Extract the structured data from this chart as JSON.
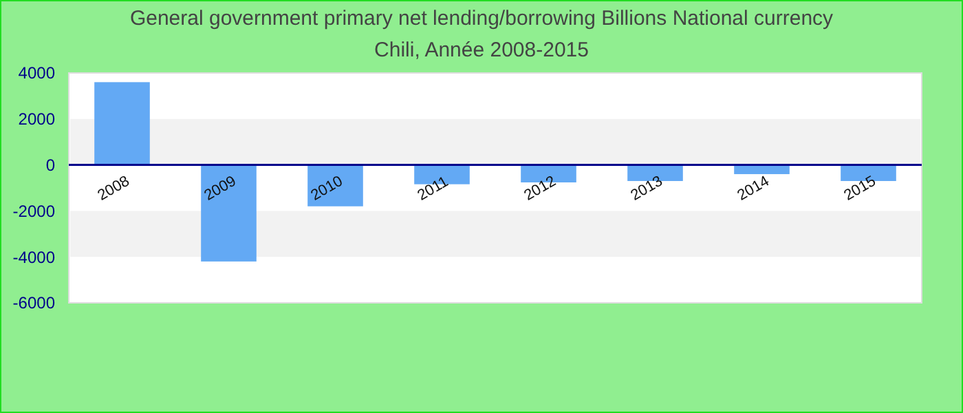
{
  "chart_data": {
    "type": "bar",
    "title": "General government primary net lending/borrowing Billions National currency",
    "subtitle": "Chili, Année 2008-2015",
    "categories": [
      "2008",
      "2009",
      "2010",
      "2011",
      "2012",
      "2013",
      "2014",
      "2015"
    ],
    "values": [
      3600,
      -4200,
      -1800,
      -840,
      -760,
      -700,
      -400,
      -700
    ],
    "color": "#63a9f4",
    "ylim": [
      -6000,
      4000
    ],
    "yticks": [
      -6000,
      -4000,
      -2000,
      0,
      2000,
      4000
    ],
    "bands": [
      {
        "axis": "y",
        "from": 0,
        "to": 2000,
        "color": "#f2f2f2"
      },
      {
        "axis": "y",
        "from": -4000,
        "to": -2000,
        "color": "#f2f2f2"
      }
    ]
  }
}
